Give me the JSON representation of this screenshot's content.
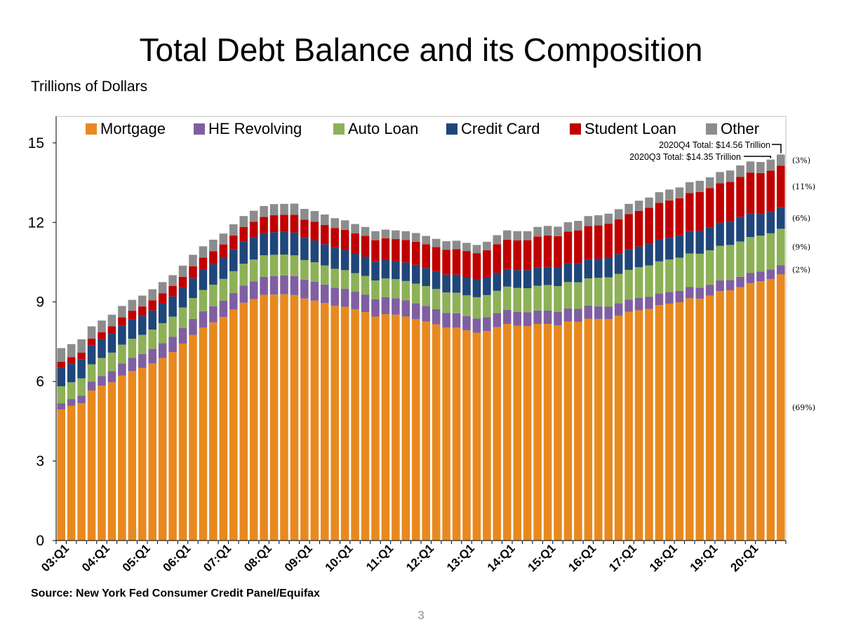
{
  "chart_data": {
    "type": "bar",
    "stacked": true,
    "title": "Total Debt Balance and its Composition",
    "units_label": "Trillions of Dollars",
    "ylim": [
      0,
      16
    ],
    "yticks": [
      0,
      3,
      6,
      9,
      12,
      15
    ],
    "xtick_labels": [
      "03:Q1",
      "04:Q1",
      "05:Q1",
      "06:Q1",
      "07:Q1",
      "08:Q1",
      "09:Q1",
      "10:Q1",
      "11:Q1",
      "12:Q1",
      "13:Q1",
      "14:Q1",
      "15:Q1",
      "16:Q1",
      "17:Q1",
      "18:Q1",
      "19:Q1",
      "20:Q1"
    ],
    "legend_position": "top",
    "grid": false,
    "categories": [
      "03Q1",
      "03Q2",
      "03Q3",
      "03Q4",
      "04Q1",
      "04Q2",
      "04Q3",
      "04Q4",
      "05Q1",
      "05Q2",
      "05Q3",
      "05Q4",
      "06Q1",
      "06Q2",
      "06Q3",
      "06Q4",
      "07Q1",
      "07Q2",
      "07Q3",
      "07Q4",
      "08Q1",
      "08Q2",
      "08Q3",
      "08Q4",
      "09Q1",
      "09Q2",
      "09Q3",
      "09Q4",
      "10Q1",
      "10Q2",
      "10Q3",
      "10Q4",
      "11Q1",
      "11Q2",
      "11Q3",
      "11Q4",
      "12Q1",
      "12Q2",
      "12Q3",
      "12Q4",
      "13Q1",
      "13Q2",
      "13Q3",
      "13Q4",
      "14Q1",
      "14Q2",
      "14Q3",
      "14Q4",
      "15Q1",
      "15Q2",
      "15Q3",
      "15Q4",
      "16Q1",
      "16Q2",
      "16Q3",
      "16Q4",
      "17Q1",
      "17Q2",
      "17Q3",
      "17Q4",
      "18Q1",
      "18Q2",
      "18Q3",
      "18Q4",
      "19Q1",
      "19Q2",
      "19Q3",
      "19Q4",
      "20Q1",
      "20Q2",
      "20Q3",
      "20Q4"
    ],
    "series": [
      {
        "name": "Mortgage",
        "color": "#E8891F",
        "values": [
          4.94,
          5.08,
          5.18,
          5.66,
          5.84,
          5.97,
          6.22,
          6.39,
          6.51,
          6.68,
          6.89,
          7.11,
          7.43,
          7.76,
          8.04,
          8.23,
          8.43,
          8.71,
          8.97,
          9.11,
          9.27,
          9.28,
          9.29,
          9.26,
          9.13,
          9.05,
          8.96,
          8.85,
          8.82,
          8.72,
          8.62,
          8.45,
          8.54,
          8.52,
          8.45,
          8.35,
          8.26,
          8.16,
          8.04,
          8.03,
          7.93,
          7.84,
          7.9,
          8.05,
          8.17,
          8.1,
          8.09,
          8.17,
          8.17,
          8.12,
          8.26,
          8.25,
          8.37,
          8.36,
          8.35,
          8.48,
          8.63,
          8.69,
          8.74,
          8.88,
          8.94,
          8.99,
          9.14,
          9.12,
          9.24,
          9.41,
          9.44,
          9.56,
          9.71,
          9.78,
          9.86,
          10.04
        ]
      },
      {
        "name": "HE Revolving",
        "color": "#7F5FA2",
        "values": [
          0.24,
          0.26,
          0.29,
          0.33,
          0.37,
          0.42,
          0.46,
          0.5,
          0.53,
          0.55,
          0.56,
          0.58,
          0.59,
          0.6,
          0.61,
          0.61,
          0.62,
          0.63,
          0.65,
          0.67,
          0.68,
          0.7,
          0.71,
          0.72,
          0.71,
          0.71,
          0.7,
          0.69,
          0.68,
          0.67,
          0.66,
          0.65,
          0.64,
          0.62,
          0.61,
          0.6,
          0.59,
          0.57,
          0.55,
          0.54,
          0.54,
          0.53,
          0.53,
          0.53,
          0.53,
          0.53,
          0.52,
          0.51,
          0.51,
          0.51,
          0.5,
          0.49,
          0.49,
          0.48,
          0.47,
          0.47,
          0.46,
          0.46,
          0.45,
          0.44,
          0.44,
          0.43,
          0.42,
          0.42,
          0.41,
          0.4,
          0.39,
          0.39,
          0.39,
          0.37,
          0.36,
          0.35
        ]
      },
      {
        "name": "Auto Loan",
        "color": "#8DB157",
        "values": [
          0.64,
          0.63,
          0.65,
          0.66,
          0.68,
          0.7,
          0.71,
          0.72,
          0.72,
          0.73,
          0.75,
          0.76,
          0.77,
          0.79,
          0.8,
          0.81,
          0.82,
          0.82,
          0.82,
          0.82,
          0.81,
          0.8,
          0.79,
          0.78,
          0.74,
          0.74,
          0.72,
          0.71,
          0.7,
          0.7,
          0.7,
          0.71,
          0.71,
          0.72,
          0.73,
          0.74,
          0.75,
          0.76,
          0.77,
          0.78,
          0.78,
          0.81,
          0.83,
          0.84,
          0.88,
          0.9,
          0.91,
          0.93,
          0.96,
          0.97,
          0.99,
          1.0,
          1.03,
          1.07,
          1.11,
          1.11,
          1.12,
          1.16,
          1.19,
          1.21,
          1.22,
          1.25,
          1.27,
          1.28,
          1.3,
          1.31,
          1.32,
          1.33,
          1.35,
          1.35,
          1.37,
          1.37
        ]
      },
      {
        "name": "Credit Card",
        "color": "#1F467A",
        "values": [
          0.69,
          0.7,
          0.71,
          0.72,
          0.71,
          0.71,
          0.72,
          0.73,
          0.71,
          0.72,
          0.74,
          0.76,
          0.74,
          0.75,
          0.76,
          0.78,
          0.79,
          0.82,
          0.83,
          0.84,
          0.84,
          0.85,
          0.85,
          0.86,
          0.84,
          0.82,
          0.8,
          0.8,
          0.76,
          0.74,
          0.73,
          0.71,
          0.69,
          0.69,
          0.7,
          0.71,
          0.68,
          0.67,
          0.67,
          0.68,
          0.68,
          0.67,
          0.67,
          0.68,
          0.66,
          0.67,
          0.68,
          0.7,
          0.68,
          0.69,
          0.7,
          0.73,
          0.71,
          0.72,
          0.74,
          0.75,
          0.76,
          0.78,
          0.81,
          0.83,
          0.82,
          0.83,
          0.84,
          0.87,
          0.85,
          0.87,
          0.88,
          0.93,
          0.89,
          0.82,
          0.81,
          0.82
        ]
      },
      {
        "name": "Student Loan",
        "color": "#C00000",
        "values": [
          0.24,
          0.25,
          0.26,
          0.25,
          0.26,
          0.28,
          0.31,
          0.33,
          0.36,
          0.38,
          0.39,
          0.39,
          0.42,
          0.45,
          0.46,
          0.48,
          0.51,
          0.53,
          0.56,
          0.58,
          0.61,
          0.64,
          0.65,
          0.67,
          0.68,
          0.7,
          0.72,
          0.74,
          0.76,
          0.76,
          0.78,
          0.81,
          0.82,
          0.82,
          0.85,
          0.87,
          0.9,
          0.91,
          0.94,
          0.96,
          0.99,
          0.99,
          1.02,
          1.08,
          1.11,
          1.12,
          1.13,
          1.16,
          1.19,
          1.19,
          1.2,
          1.23,
          1.26,
          1.26,
          1.28,
          1.31,
          1.34,
          1.34,
          1.36,
          1.38,
          1.41,
          1.41,
          1.44,
          1.46,
          1.49,
          1.49,
          1.5,
          1.51,
          1.54,
          1.54,
          1.55,
          1.56
        ]
      },
      {
        "name": "Other",
        "color": "#8C8C8C",
        "values": [
          0.51,
          0.49,
          0.5,
          0.46,
          0.44,
          0.44,
          0.43,
          0.41,
          0.41,
          0.42,
          0.42,
          0.41,
          0.42,
          0.43,
          0.43,
          0.44,
          0.41,
          0.42,
          0.41,
          0.42,
          0.41,
          0.42,
          0.41,
          0.42,
          0.41,
          0.41,
          0.4,
          0.37,
          0.36,
          0.35,
          0.34,
          0.34,
          0.33,
          0.33,
          0.33,
          0.33,
          0.31,
          0.31,
          0.32,
          0.32,
          0.31,
          0.31,
          0.32,
          0.34,
          0.35,
          0.35,
          0.34,
          0.36,
          0.36,
          0.36,
          0.36,
          0.36,
          0.38,
          0.38,
          0.38,
          0.38,
          0.39,
          0.39,
          0.39,
          0.4,
          0.41,
          0.41,
          0.41,
          0.42,
          0.41,
          0.42,
          0.43,
          0.43,
          0.42,
          0.42,
          0.42,
          0.42
        ]
      }
    ],
    "annotations": {
      "q4_total": "2020Q4 Total: $14.56 Trillion",
      "q3_total": "2020Q3 Total: $14.35 Trillion",
      "shares": [
        {
          "label": "(3%)",
          "series": "Other"
        },
        {
          "label": "(11%)",
          "series": "Student Loan"
        },
        {
          "label": "(6%)",
          "series": "Credit Card"
        },
        {
          "label": "(9%)",
          "series": "Auto Loan"
        },
        {
          "label": "(2%)",
          "series": "HE Revolving"
        },
        {
          "label": "(69%)",
          "series": "Mortgage"
        }
      ]
    }
  },
  "source": "Source: New York Fed Consumer Credit Panel/Equifax",
  "page_number": "3"
}
